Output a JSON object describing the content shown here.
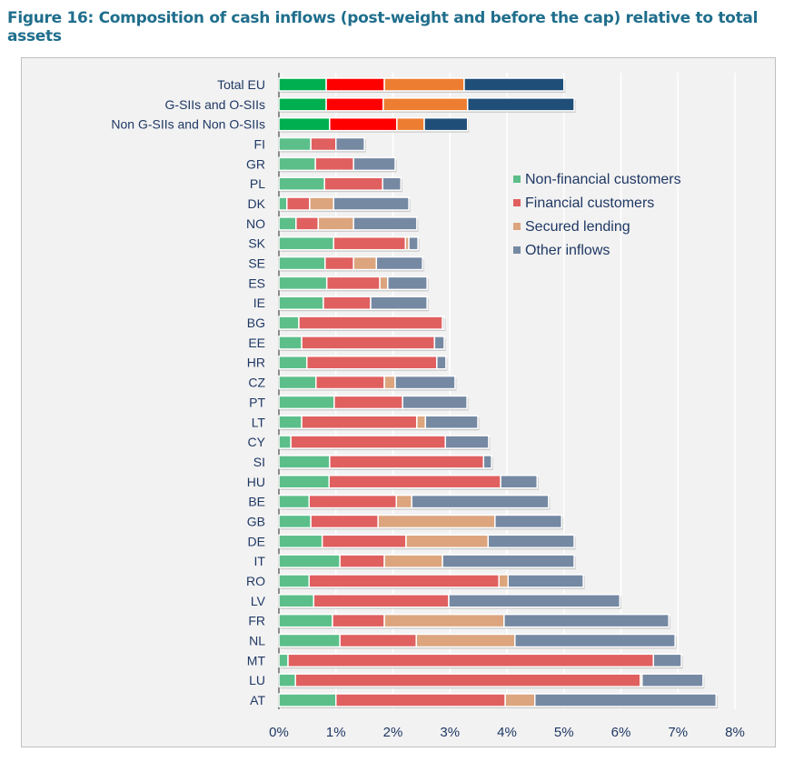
{
  "title": "Figure 16: Composition of cash inflows (post-weight and before the cap) relative to total assets",
  "chart_data": {
    "type": "bar",
    "orientation": "horizontal",
    "stacked": true,
    "title": "Figure 16: Composition of cash inflows (post-weight and before the cap) relative to total assets",
    "xlabel": "",
    "ylabel": "",
    "xlim": [
      0,
      8
    ],
    "xticks": [
      "0%",
      "1%",
      "2%",
      "3%",
      "4%",
      "5%",
      "6%",
      "7%",
      "8%"
    ],
    "grid": true,
    "legend_position": "top-right",
    "categories": [
      "Total EU",
      "G-SIIs and O-SIIs",
      "Non G-SIIs and Non O-SIIs",
      "FI",
      "GR",
      "PL",
      "DK",
      "NO",
      "SK",
      "SE",
      "ES",
      "IE",
      "BG",
      "EE",
      "HR",
      "CZ",
      "PT",
      "LT",
      "CY",
      "SI",
      "HU",
      "BE",
      "GB",
      "DE",
      "IT",
      "RO",
      "LV",
      "FR",
      "NL",
      "MT",
      "LU",
      "AT"
    ],
    "highlight_categories": 3,
    "series": [
      {
        "name": "Non-financial customers",
        "color": "#5cbf8a",
        "highlight_color": "#00b050",
        "values": [
          0.83,
          0.83,
          0.89,
          0.56,
          0.64,
          0.8,
          0.14,
          0.3,
          0.96,
          0.81,
          0.84,
          0.78,
          0.35,
          0.4,
          0.49,
          0.65,
          0.97,
          0.4,
          0.21,
          0.89,
          0.88,
          0.53,
          0.56,
          0.76,
          1.07,
          0.53,
          0.61,
          0.94,
          1.07,
          0.16,
          0.29,
          1.0
        ]
      },
      {
        "name": "Financial customers",
        "color": "#e06060",
        "highlight_color": "#ff0000",
        "values": [
          1.02,
          1.0,
          1.18,
          0.44,
          0.67,
          1.02,
          0.4,
          0.39,
          1.26,
          0.5,
          0.93,
          0.83,
          2.52,
          2.33,
          2.28,
          1.2,
          1.2,
          2.02,
          2.71,
          2.7,
          3.01,
          1.53,
          1.18,
          1.47,
          0.78,
          3.33,
          2.37,
          0.91,
          1.34,
          6.41,
          6.05,
          2.97
        ]
      },
      {
        "name": "Secured lending",
        "color": "#dca57e",
        "highlight_color": "#ed7d31",
        "values": [
          1.4,
          1.48,
          0.48,
          0,
          0,
          0,
          0.42,
          0.62,
          0.06,
          0.4,
          0.14,
          0,
          0,
          0,
          0,
          0.19,
          0,
          0.15,
          0,
          0,
          0,
          0.27,
          2.05,
          1.44,
          1.02,
          0.16,
          0,
          2.1,
          1.73,
          0,
          0.03,
          0.52
        ]
      },
      {
        "name": "Other inflows",
        "color": "#7589a3",
        "highlight_color": "#1f4e79",
        "values": [
          1.75,
          1.87,
          0.76,
          0.5,
          0.73,
          0.32,
          1.32,
          1.11,
          0.16,
          0.81,
          0.69,
          0.99,
          0.03,
          0.17,
          0.16,
          1.05,
          1.13,
          0.92,
          0.76,
          0.14,
          0.64,
          2.4,
          1.17,
          1.51,
          2.31,
          1.32,
          3.0,
          2.89,
          2.81,
          0.49,
          1.07,
          3.18
        ]
      }
    ]
  }
}
